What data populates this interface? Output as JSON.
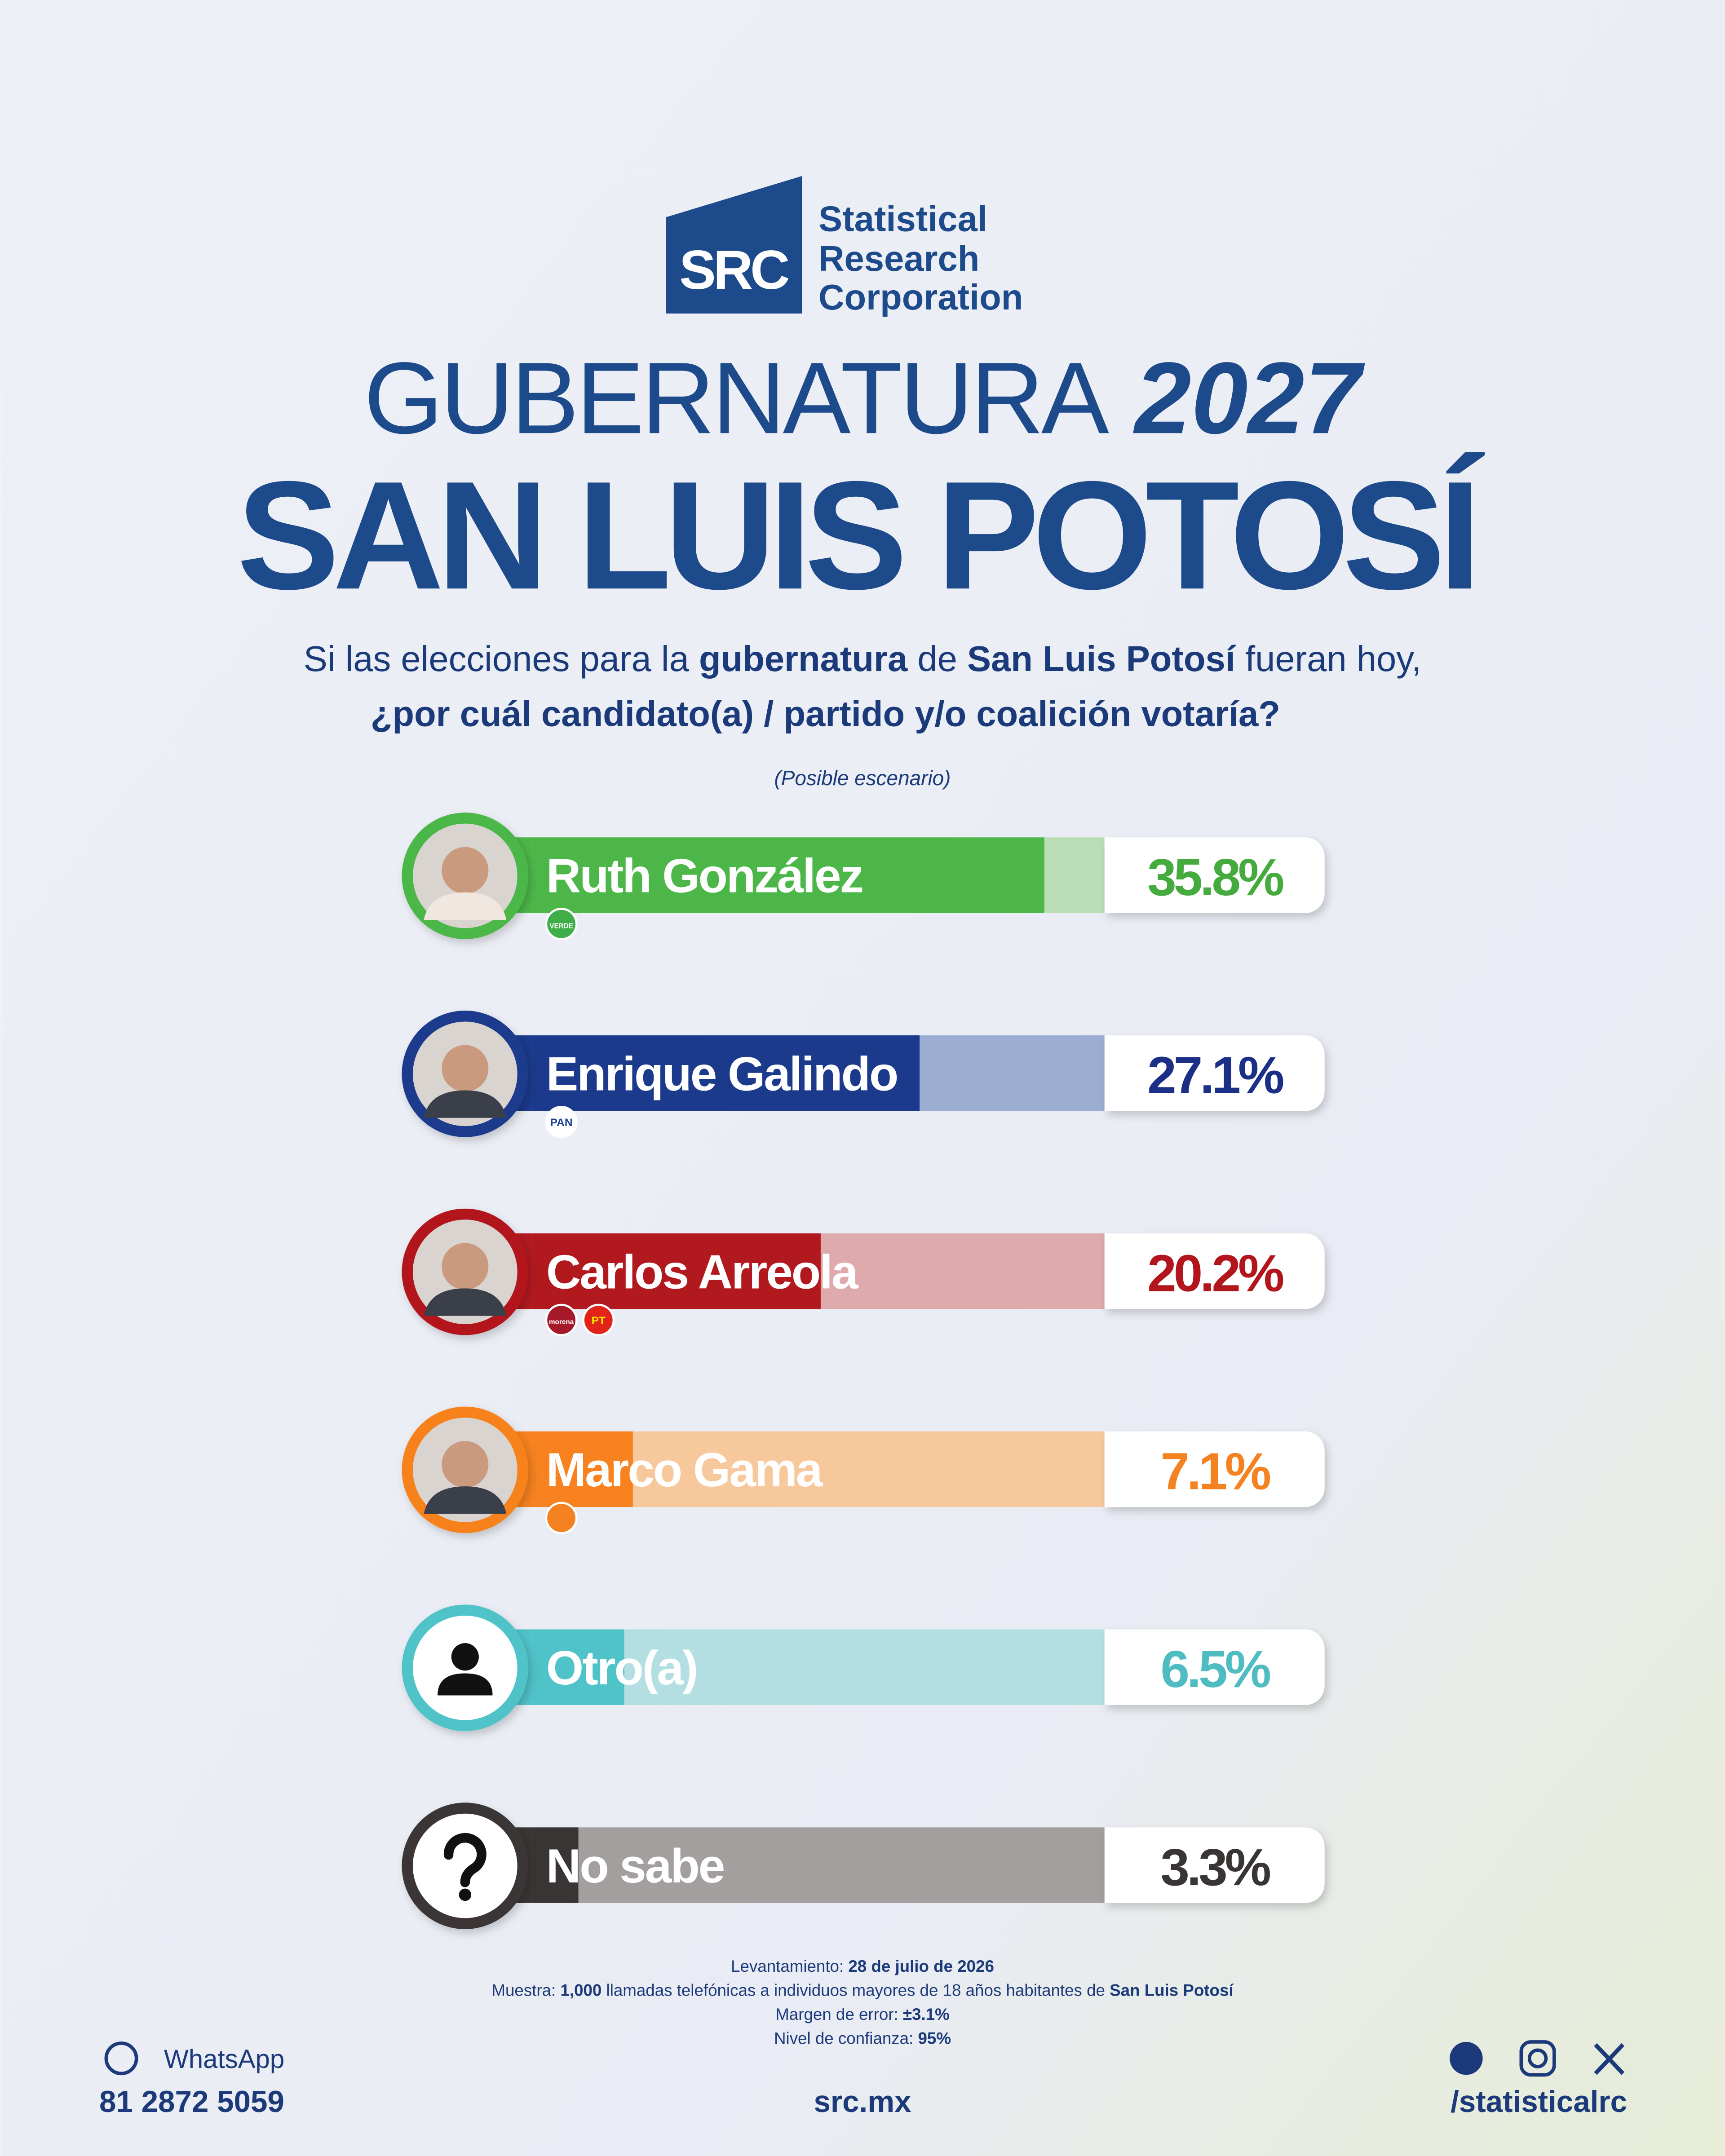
{
  "header": {
    "logo_mark": "SRC",
    "logo_lines": [
      "Statistical",
      "Research",
      "Corporation"
    ],
    "title_light": "GUBERNATURA",
    "title_year": "2027",
    "subtitle": "SAN LUIS POTOSÍ",
    "question": [
      [
        {
          "text": "Si las elecciones para la ",
          "bold": false
        },
        {
          "text": "gubernatura",
          "bold": true
        },
        {
          "text": " de ",
          "bold": false
        },
        {
          "text": "San Luis Potosí",
          "bold": true
        },
        {
          "text": " fueran hoy,",
          "bold": false
        }
      ],
      [
        {
          "text": "¿por cuál candidato(a) / partido y/o coalición votaría?",
          "bold": true
        }
      ]
    ],
    "note": "(Posible escenario)"
  },
  "chart_data": {
    "type": "bar",
    "categories": [
      "Ruth González",
      "Enrique Galindo",
      "Carlos Arreola",
      "Marco Gama",
      "Otro(a)",
      "No sabe"
    ],
    "values": [
      35.8,
      27.1,
      20.2,
      7.1,
      6.5,
      3.3
    ],
    "value_labels": [
      "35.8%",
      "27.1%",
      "20.2%",
      "7.1%",
      "6.5%",
      "3.3%"
    ],
    "colors": [
      "#4cb748",
      "#1b3a8c",
      "#b2191f",
      "#f7821f",
      "#4fc3c8",
      "#3a3535"
    ],
    "track_colors": [
      "#b9deb5",
      "#9cadd2",
      "#deaaac",
      "#f8c89d",
      "#b3dfe3",
      "#a39f9f"
    ],
    "label_colors": [
      "#45ab3f",
      "#1c2f86",
      "#b3151c",
      "#f58220",
      "#4fbcc1",
      "#3a3535"
    ],
    "badges": [
      [
        {
          "label": "VERDE",
          "color": "#3fae49",
          "text_color": "#ffffff"
        }
      ],
      [
        {
          "label": "PAN",
          "color": "#ffffff",
          "text_color": "#1b3f94"
        }
      ],
      [
        {
          "label": "morena",
          "color": "#a5192a",
          "text_color": "#ffffff"
        },
        {
          "label": "PT",
          "color": "#e2231a",
          "text_color": "#ffe600"
        }
      ],
      [
        {
          "color": "#f58220"
        }
      ],
      [],
      []
    ],
    "xlim": [
      0,
      40
    ]
  },
  "footer": {
    "methodology": [
      [
        {
          "text": "Levantamiento: ",
          "bold": false
        },
        {
          "text": "28 de julio de 2026",
          "bold": true
        }
      ],
      [
        {
          "text": "Muestra: ",
          "bold": false
        },
        {
          "text": "1,000",
          "bold": true
        },
        {
          "text": " llamadas telefónicas a individuos mayores de 18 años habitantes de ",
          "bold": false
        },
        {
          "text": "San Luis Potosí",
          "bold": true
        }
      ],
      [
        {
          "text": "Margen de error: ",
          "bold": false
        },
        {
          "text": "±3.1%",
          "bold": true
        }
      ],
      [
        {
          "text": "Nivel de confianza: ",
          "bold": false
        },
        {
          "text": "95%",
          "bold": true
        }
      ]
    ],
    "whatsapp_label": "WhatsApp",
    "phone": "81 2872 5059",
    "website": "src.mx",
    "handle": "/statisticalrc"
  }
}
